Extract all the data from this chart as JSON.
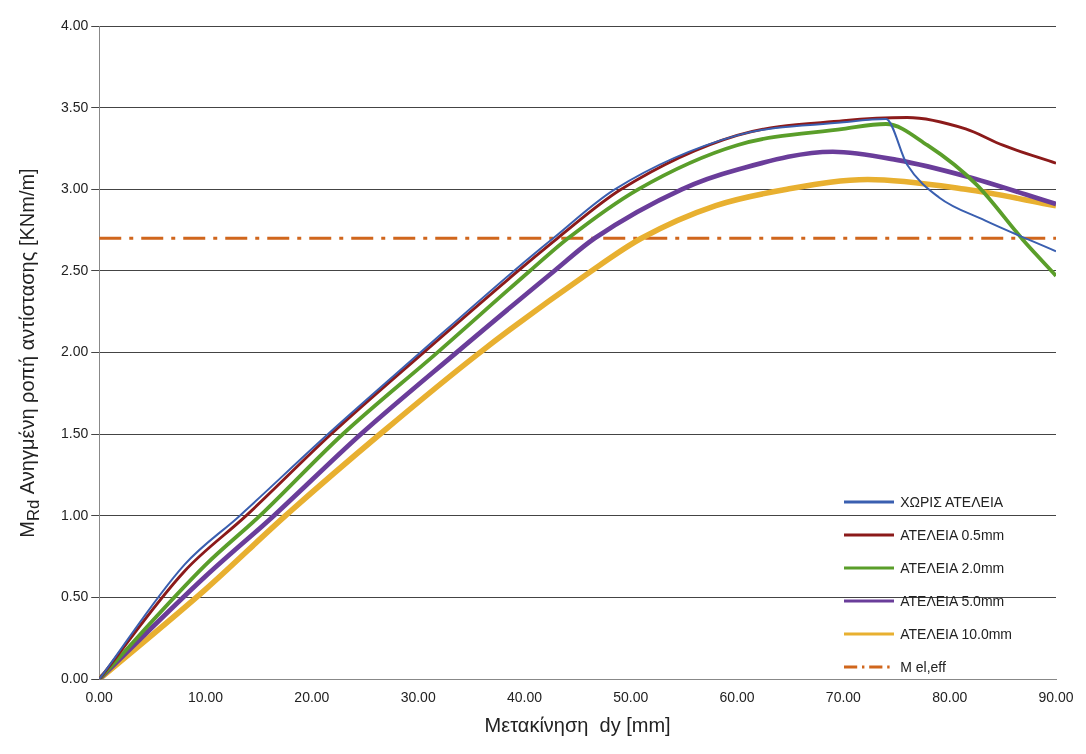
{
  "chart_data": {
    "type": "line",
    "xlabel": "Μετακίνηση  dy [mm]",
    "ylabel": "M$_{Rd}$ Ανηγμένη ροπή αντίστασης [KNm/m]",
    "series": [
      {
        "name": "ΧΩΡΙΣ ΑΤΕΛΕΙΑ",
        "color": "#3a5fb0",
        "x": [
          0,
          8,
          13.2,
          21.5,
          30.2,
          39,
          42.7,
          48.5,
          60,
          70,
          74,
          76,
          79,
          83.3,
          90
        ],
        "values": [
          0,
          0.7,
          1.0,
          1.5,
          2.0,
          2.5,
          2.7,
          3.0,
          3.33,
          3.41,
          3.43,
          3.15,
          2.95,
          2.81,
          2.62
        ]
      },
      {
        "name": "ΑΤΕΛΕΙΑ 0.5mm",
        "color": "#8b1a1a",
        "x": [
          0,
          8,
          13.8,
          21.8,
          30.5,
          39.4,
          43.1,
          49.1,
          60,
          70,
          76,
          81.5,
          85,
          90
        ],
        "values": [
          0,
          0.66,
          1.0,
          1.5,
          2.0,
          2.5,
          2.7,
          3.0,
          3.33,
          3.42,
          3.44,
          3.37,
          3.27,
          3.16
        ]
      },
      {
        "name": "ΑΤΕΛΕΙΑ 2.0mm",
        "color": "#5a9e2a",
        "x": [
          0,
          10,
          15.1,
          22.9,
          31.8,
          40.5,
          44.1,
          50.7,
          60,
          70,
          74,
          77.9,
          82.5,
          86.9,
          90
        ],
        "values": [
          0,
          0.7,
          1.0,
          1.5,
          2.0,
          2.5,
          2.7,
          3.0,
          3.27,
          3.37,
          3.4,
          3.27,
          3.03,
          2.69,
          2.47
        ]
      },
      {
        "name": "ΑΤΕΛΕΙΑ 5.0mm",
        "color": "#6a3d9a",
        "x": [
          0,
          10,
          16.4,
          24.6,
          33.6,
          42.8,
          46.6,
          54.8,
          60,
          69,
          75,
          81.5,
          90
        ],
        "values": [
          0,
          0.63,
          1.0,
          1.5,
          2.0,
          2.5,
          2.7,
          3.0,
          3.12,
          3.23,
          3.18,
          3.08,
          2.91
        ]
      },
      {
        "name": "ΑΤΕΛΕΙΑ 10.0mm",
        "color": "#e8b030",
        "x": [
          0,
          10,
          17.5,
          26.4,
          35.8,
          46.3,
          51,
          58,
          64.7,
          72.3,
          81.5,
          90
        ],
        "values": [
          0,
          0.55,
          1.0,
          1.5,
          2.0,
          2.5,
          2.7,
          2.9,
          3.0,
          3.06,
          3.0,
          2.9
        ]
      }
    ],
    "ref_lines": [
      {
        "axis": "y",
        "value": 2.7,
        "label": "M el,eff",
        "color": "#d0661c",
        "line_style": "dashed"
      }
    ],
    "xlim": [
      0,
      90
    ],
    "xticks": [
      {
        "value": 0,
        "label": "0.00"
      },
      {
        "value": 10,
        "label": "10.00"
      },
      {
        "value": 20,
        "label": "20.00"
      },
      {
        "value": 30,
        "label": "30.00"
      },
      {
        "value": 40,
        "label": "40.00"
      },
      {
        "value": 50,
        "label": "50.00"
      },
      {
        "value": 60,
        "label": "60.00"
      },
      {
        "value": 70,
        "label": "70.00"
      },
      {
        "value": 80,
        "label": "80.00"
      },
      {
        "value": 90,
        "label": "90.00"
      }
    ],
    "ylim": [
      0,
      4
    ],
    "yticks": [
      {
        "value": 0,
        "label": "0.00"
      },
      {
        "value": 0.5,
        "label": "0.50"
      },
      {
        "value": 1,
        "label": "1.00"
      },
      {
        "value": 1.5,
        "label": "1.50"
      },
      {
        "value": 2,
        "label": "2.00"
      },
      {
        "value": 2.5,
        "label": "2.50"
      },
      {
        "value": 3,
        "label": "3.00"
      },
      {
        "value": 3.5,
        "label": "3.50"
      },
      {
        "value": 4,
        "label": "4.00"
      }
    ],
    "grid": "y",
    "legend": "bottom right",
    "marker": "none",
    "line_style": "solid"
  }
}
